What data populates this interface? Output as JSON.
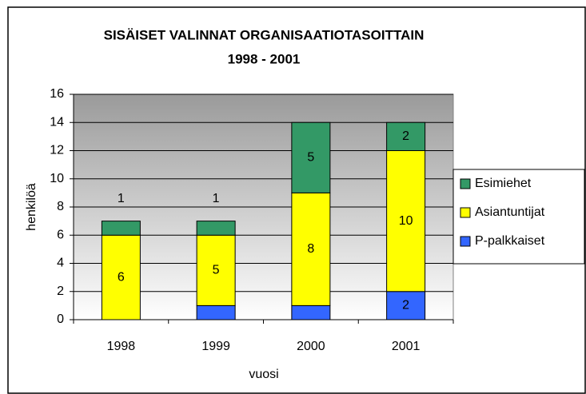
{
  "chart_data": {
    "type": "stacked_bar",
    "title": [
      "SISÄISET VALINNAT ORGANISAATIOTASOITTAIN",
      "1998 - 2001"
    ],
    "xlabel": "vuosi",
    "ylabel": "henkilöä",
    "categories": [
      "1998",
      "1999",
      "2000",
      "2001"
    ],
    "series": [
      {
        "name": "P-palkkaiset",
        "color": "#3366ff",
        "values": [
          0,
          1,
          1,
          2
        ]
      },
      {
        "name": "Asiantuntijat",
        "color": "#ffff00",
        "values": [
          6,
          5,
          8,
          10
        ]
      },
      {
        "name": "Esimiehet",
        "color": "#339966",
        "values": [
          1,
          1,
          5,
          2
        ]
      }
    ],
    "ylim": [
      0,
      16
    ],
    "yticks": [
      0,
      2,
      4,
      6,
      8,
      10,
      12,
      14,
      16
    ],
    "grid": true,
    "legend": "right"
  }
}
